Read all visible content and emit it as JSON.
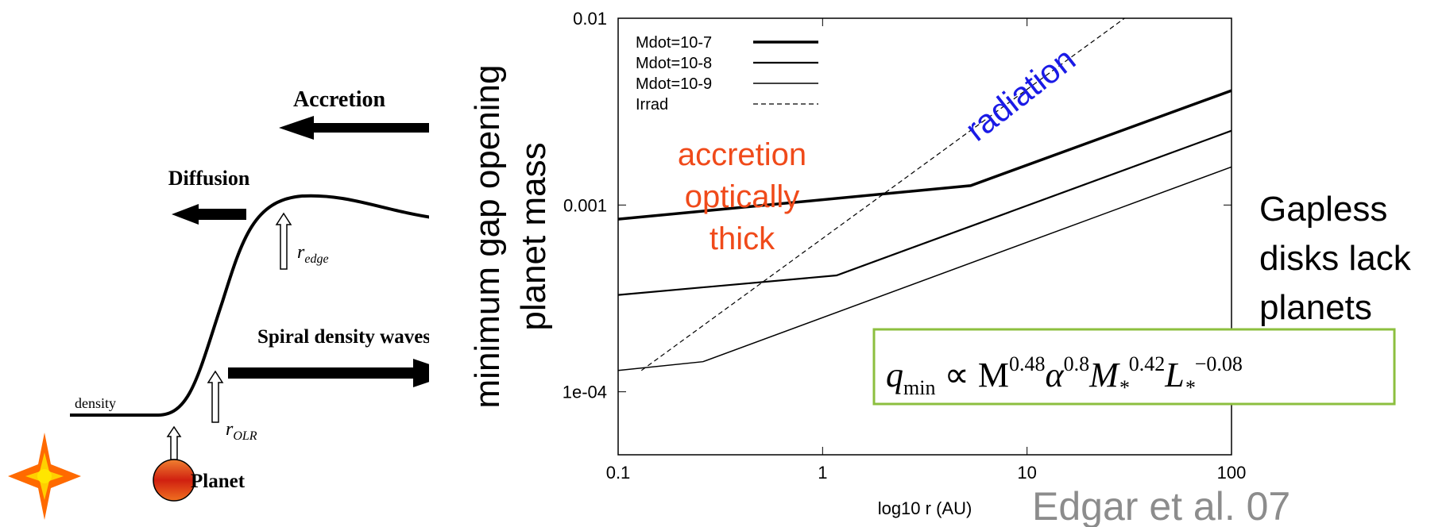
{
  "chart_data": {
    "type": "line",
    "x_label": "log10 r (AU)",
    "y_label": [
      "minimum gap opening",
      "planet mass"
    ],
    "xscale": "log",
    "yscale": "log",
    "xlim": [
      0.1,
      100
    ],
    "ylim": [
      4.6e-05,
      0.01
    ],
    "xticks": [
      0.1,
      1,
      10,
      100
    ],
    "yticks": [
      {
        "value": 0.0001,
        "label": "1e-04"
      },
      0.001,
      0.01
    ],
    "legend": "top-left",
    "series": [
      {
        "name": "Mdot=10-7",
        "color": "#000000",
        "width": 3.5,
        "x": [
          0.1,
          5.3,
          100
        ],
        "values": [
          0.00084,
          0.00127,
          0.0041
        ]
      },
      {
        "name": "Mdot=10-8",
        "color": "#000000",
        "width": 2.2,
        "x": [
          0.1,
          1.17,
          100
        ],
        "values": [
          0.00033,
          0.00042,
          0.0025
        ]
      },
      {
        "name": "Mdot=10-9",
        "color": "#000000",
        "width": 1.5,
        "x": [
          0.1,
          0.26,
          100
        ],
        "values": [
          0.00013,
          0.000145,
          0.0016
        ]
      },
      {
        "name": "Irrad",
        "color": "#000000",
        "width": 1.2,
        "style": "dashed",
        "x": [
          0.13,
          30
        ],
        "values": [
          0.00013,
          0.01
        ]
      }
    ],
    "annotations": {
      "radiation": "radiation",
      "accretion": [
        "accretion",
        "optically",
        "thick"
      ]
    }
  },
  "diagram": {
    "accretion": "Accretion",
    "diffusion": "Diffusion",
    "r_edge": [
      "r",
      "edge"
    ],
    "spiral": "Spiral density waves",
    "density": "density",
    "r_olr": [
      "r",
      "OLR"
    ],
    "planet": "Planet"
  },
  "side_note": [
    "Gapless",
    "disks lack",
    "planets"
  ],
  "formula": [
    "q",
    "min",
    " ∝ M",
    "0.48",
    "α",
    "0.8",
    "M",
    "*",
    "0.42",
    "L",
    "*",
    "−0.08"
  ],
  "citation": "Edgar et al. 07"
}
